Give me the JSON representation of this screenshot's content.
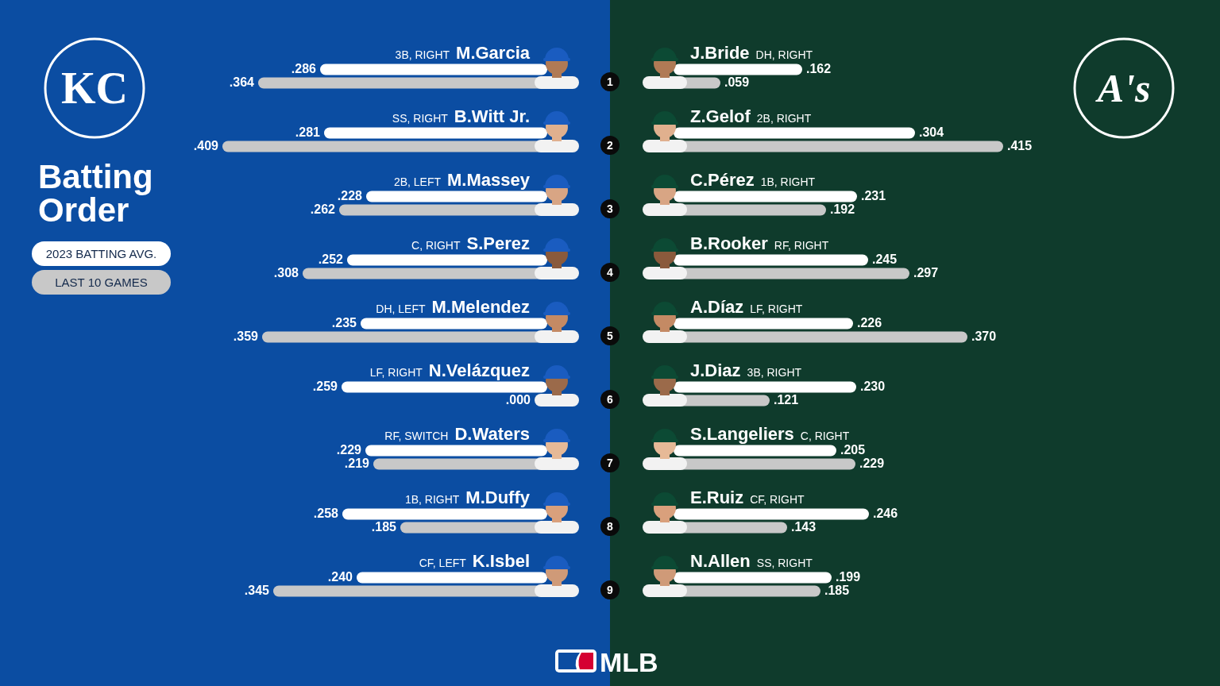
{
  "title": "Batting Order",
  "footer": "MLB",
  "chart_data": [
    {
      "type": "bar",
      "team_logo": "KC",
      "orientation": "horizontal",
      "categories": [
        "1",
        "2",
        "3",
        "4",
        "5",
        "6",
        "7",
        "8",
        "9"
      ],
      "players": [
        {
          "name": "M.Garcia",
          "info": "3B, RIGHT"
        },
        {
          "name": "B.Witt Jr.",
          "info": "SS, RIGHT"
        },
        {
          "name": "M.Massey",
          "info": "2B, LEFT"
        },
        {
          "name": "S.Perez",
          "info": "C, RIGHT"
        },
        {
          "name": "M.Melendez",
          "info": "DH, LEFT"
        },
        {
          "name": "N.Velázquez",
          "info": "LF, RIGHT"
        },
        {
          "name": "D.Waters",
          "info": "RF, SWITCH"
        },
        {
          "name": "M.Duffy",
          "info": "1B, RIGHT"
        },
        {
          "name": "K.Isbel",
          "info": "CF, LEFT"
        }
      ],
      "series": [
        {
          "name": "2023 BATTING AVG.",
          "color": "#ffffff",
          "values": [
            0.286,
            0.281,
            0.228,
            0.252,
            0.235,
            0.259,
            0.229,
            0.258,
            0.24
          ],
          "value_labels": [
            ".286",
            ".281",
            ".228",
            ".252",
            ".235",
            ".259",
            ".229",
            ".258",
            ".240"
          ]
        },
        {
          "name": "LAST 10 GAMES",
          "color": "#c8c8c8",
          "values": [
            0.364,
            0.409,
            0.262,
            0.308,
            0.359,
            0.0,
            0.219,
            0.185,
            0.345
          ],
          "value_labels": [
            ".364",
            ".409",
            ".262",
            ".308",
            ".359",
            ".000",
            ".219",
            ".185",
            ".345"
          ]
        }
      ],
      "xlim": [
        0,
        0.5
      ],
      "grid": false,
      "tick_labels": false,
      "data_labels": true,
      "legend": "left"
    },
    {
      "type": "bar",
      "team_logo": "A's",
      "orientation": "horizontal",
      "categories": [
        "1",
        "2",
        "3",
        "4",
        "5",
        "6",
        "7",
        "8",
        "9"
      ],
      "players": [
        {
          "name": "J.Bride",
          "info": "DH, RIGHT"
        },
        {
          "name": "Z.Gelof",
          "info": "2B, RIGHT"
        },
        {
          "name": "C.Pérez",
          "info": "1B, RIGHT"
        },
        {
          "name": "B.Rooker",
          "info": "RF, RIGHT"
        },
        {
          "name": "A.Díaz",
          "info": "LF, RIGHT"
        },
        {
          "name": "J.Diaz",
          "info": "3B, RIGHT"
        },
        {
          "name": "S.Langeliers",
          "info": "C, RIGHT"
        },
        {
          "name": "E.Ruiz",
          "info": "CF, RIGHT"
        },
        {
          "name": "N.Allen",
          "info": "SS, RIGHT"
        }
      ],
      "series": [
        {
          "name": "2023 BATTING AVG.",
          "color": "#ffffff",
          "values": [
            0.162,
            0.304,
            0.231,
            0.245,
            0.226,
            0.23,
            0.205,
            0.246,
            0.199
          ],
          "value_labels": [
            ".162",
            ".304",
            ".231",
            ".245",
            ".226",
            ".230",
            ".205",
            ".246",
            ".199"
          ]
        },
        {
          "name": "LAST 10 GAMES",
          "color": "#c8c8c8",
          "values": [
            0.059,
            0.415,
            0.192,
            0.297,
            0.37,
            0.121,
            0.229,
            0.143,
            0.185
          ],
          "value_labels": [
            ".059",
            ".415",
            ".192",
            ".297",
            ".370",
            ".121",
            ".229",
            ".143",
            ".185"
          ]
        }
      ],
      "xlim": [
        0,
        0.5
      ],
      "grid": false,
      "tick_labels": false,
      "data_labels": true
    }
  ]
}
